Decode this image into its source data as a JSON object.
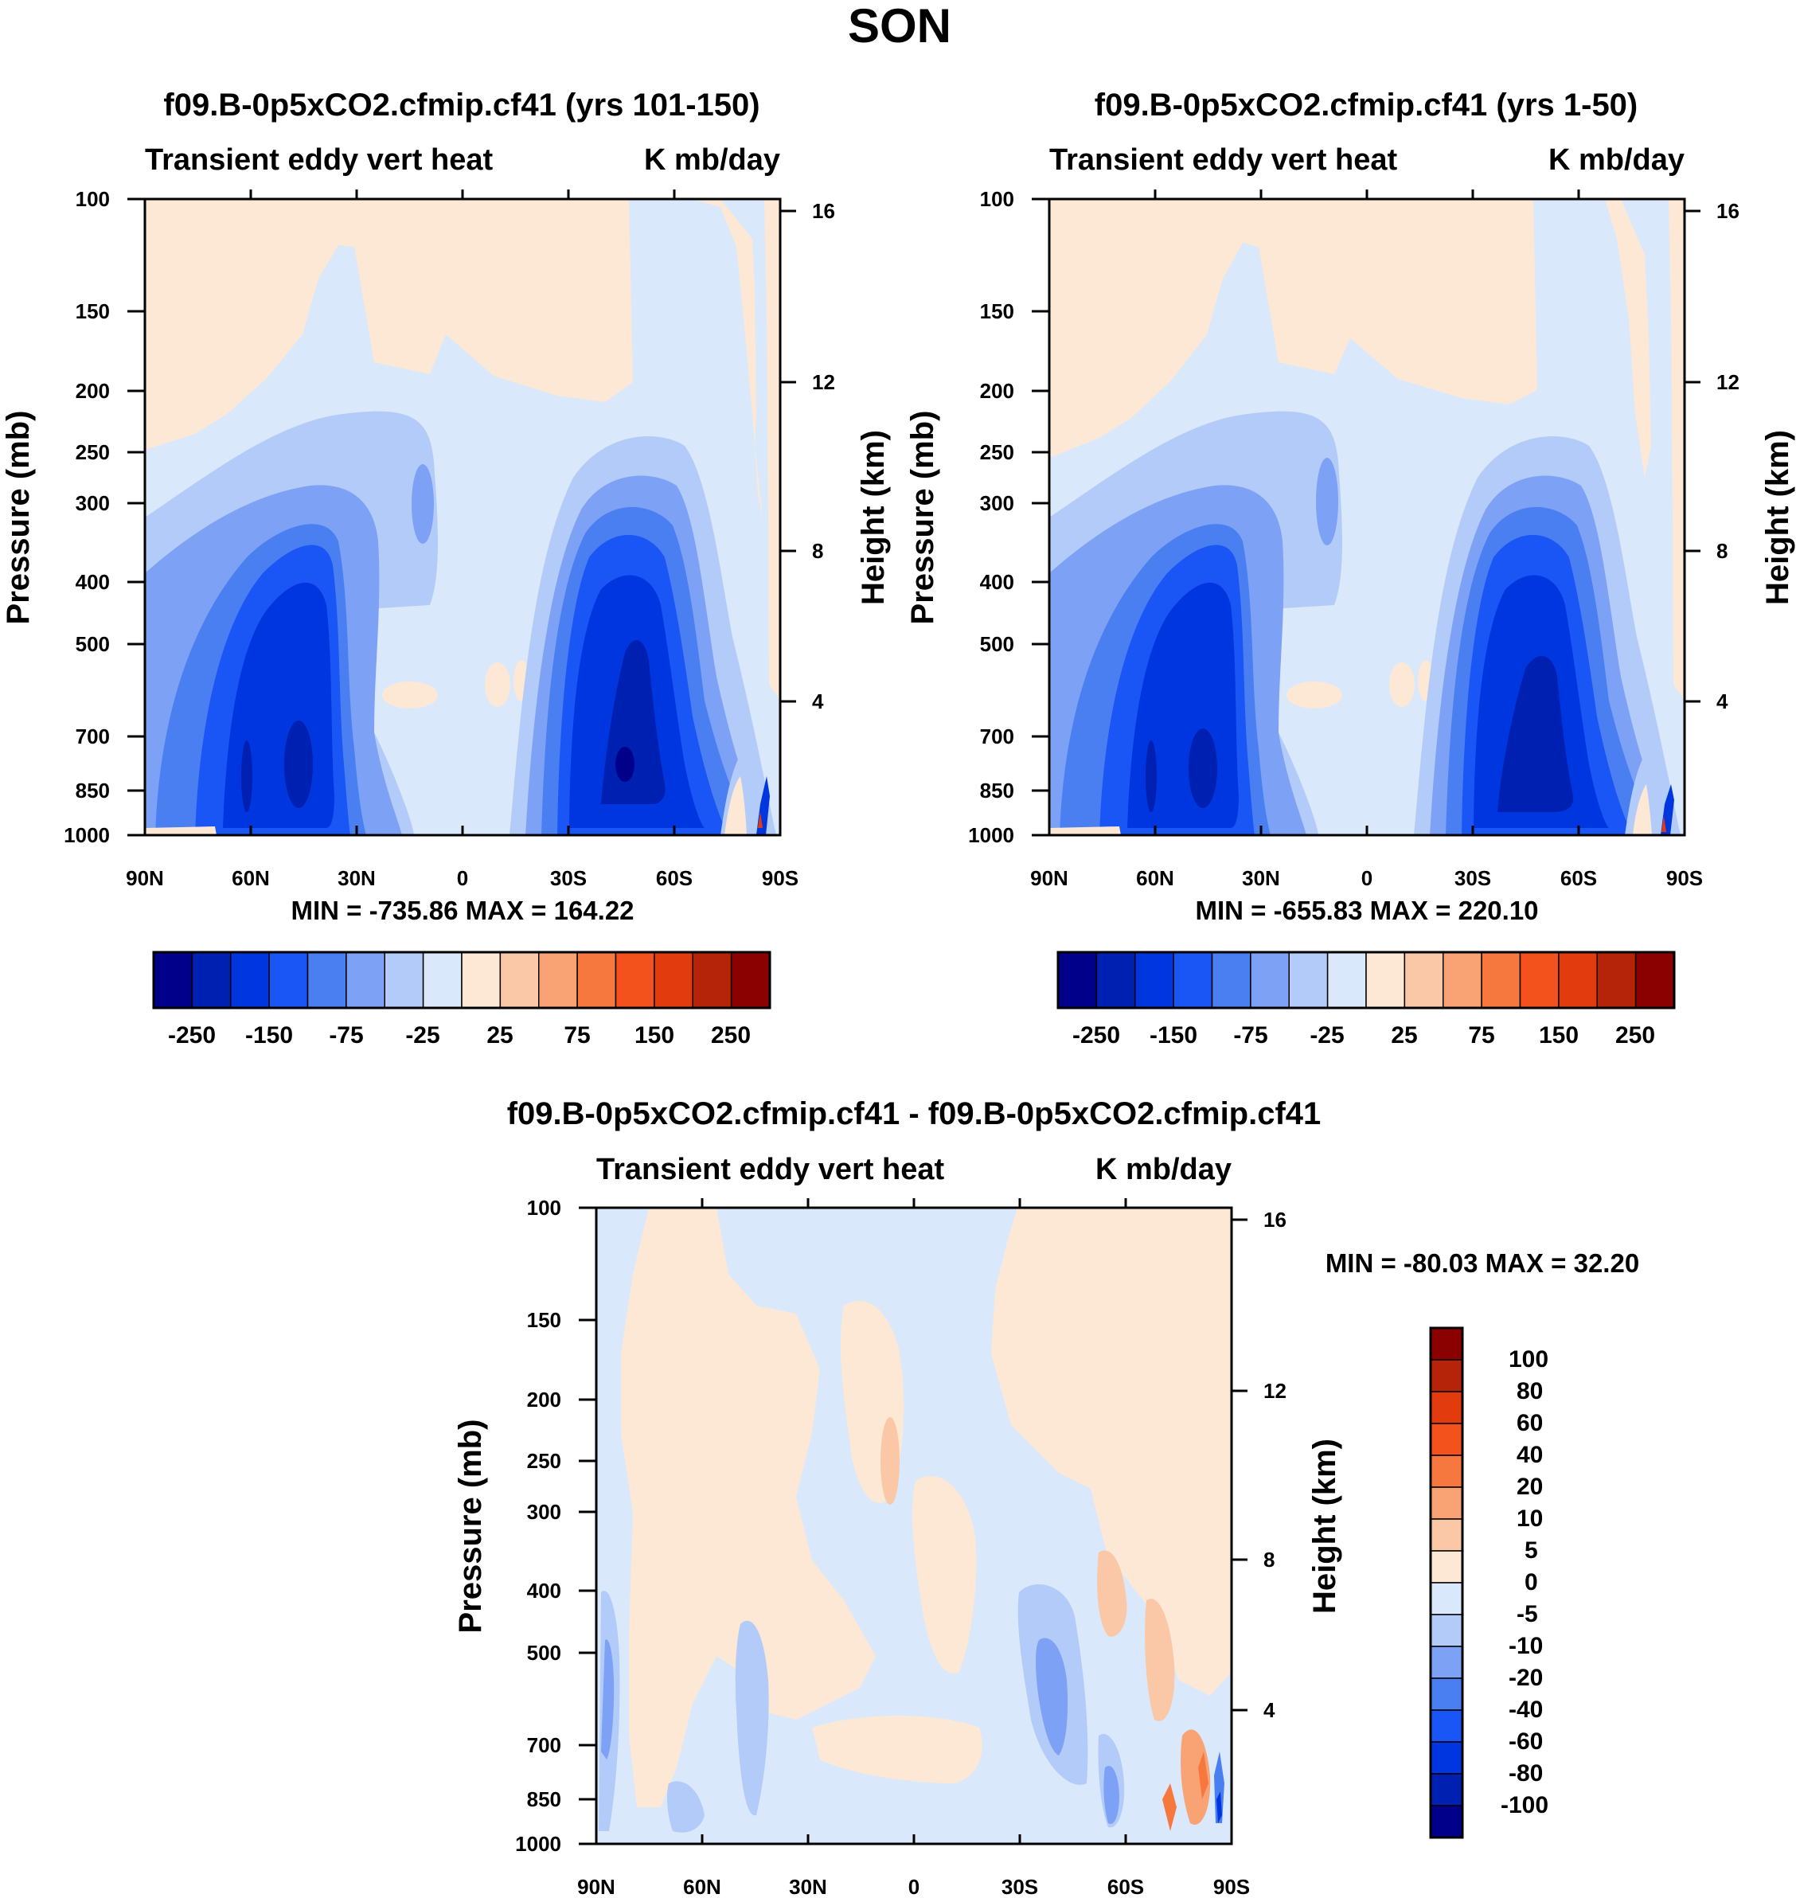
{
  "chart_data": {
    "type": "contour",
    "figure_title": "SON",
    "colors": {
      "negative": [
        "#00008b",
        "#0020b2",
        "#0036e0",
        "#1a56f5",
        "#4a7ff2",
        "#7da2f5",
        "#b3cbf9",
        "#d9e9fb"
      ],
      "positive": [
        "#fde8d6",
        "#fbc8a7",
        "#f9a374",
        "#f7783f",
        "#f4521d",
        "#e23b0e",
        "#b52409",
        "#8b0000"
      ]
    },
    "panels": [
      {
        "id": "top-left",
        "title": "f09.B-0p5xCO2.cfmip.cf41 (yrs 101-150)",
        "left_string": "Transient eddy vert heat",
        "right_string": "K mb/day",
        "ylabel": "Pressure (mb)",
        "ylabel_right": "Height (km)",
        "x_ticks": [
          "90N",
          "60N",
          "30N",
          "0",
          "30S",
          "60S",
          "90S"
        ],
        "y_ticks": [
          "100",
          "150",
          "200",
          "250",
          "300",
          "400",
          "500",
          "700",
          "850",
          "1000"
        ],
        "y_ticks_right": [
          "16",
          "12",
          "8",
          "4"
        ],
        "stats": "MIN = -735.86  MAX = 164.22",
        "colorbar_labels": [
          "-250",
          "-150",
          "-75",
          "-25",
          "25",
          "75",
          "150",
          "250"
        ],
        "min": -735.86,
        "max": 164.22
      },
      {
        "id": "top-right",
        "title": "f09.B-0p5xCO2.cfmip.cf41 (yrs 1-50)",
        "left_string": "Transient eddy vert heat",
        "right_string": "K mb/day",
        "ylabel": "Pressure (mb)",
        "ylabel_right": "Height (km)",
        "x_ticks": [
          "90N",
          "60N",
          "30N",
          "0",
          "30S",
          "60S",
          "90S"
        ],
        "y_ticks": [
          "100",
          "150",
          "200",
          "250",
          "300",
          "400",
          "500",
          "700",
          "850",
          "1000"
        ],
        "y_ticks_right": [
          "16",
          "12",
          "8",
          "4"
        ],
        "stats": "MIN = -655.83  MAX = 220.10",
        "colorbar_labels": [
          "-250",
          "-150",
          "-75",
          "-25",
          "25",
          "75",
          "150",
          "250"
        ],
        "min": -655.83,
        "max": 220.1
      },
      {
        "id": "bottom",
        "title": "f09.B-0p5xCO2.cfmip.cf41 - f09.B-0p5xCO2.cfmip.cf41",
        "left_string": "Transient eddy vert heat",
        "right_string": "K mb/day",
        "ylabel": "Pressure (mb)",
        "ylabel_right": "Height (km)",
        "x_ticks": [
          "90N",
          "60N",
          "30N",
          "0",
          "30S",
          "60S",
          "90S"
        ],
        "y_ticks": [
          "100",
          "150",
          "200",
          "250",
          "300",
          "400",
          "500",
          "700",
          "850",
          "1000"
        ],
        "y_ticks_right": [
          "16",
          "12",
          "8",
          "4"
        ],
        "stats": "MIN = -80.03  MAX =  32.20",
        "colorbar_labels": [
          "100",
          "80",
          "60",
          "40",
          "20",
          "10",
          "5",
          "0",
          "-5",
          "-10",
          "-20",
          "-40",
          "-60",
          "-80",
          "-100"
        ],
        "min": -80.03,
        "max": 32.2
      }
    ]
  }
}
